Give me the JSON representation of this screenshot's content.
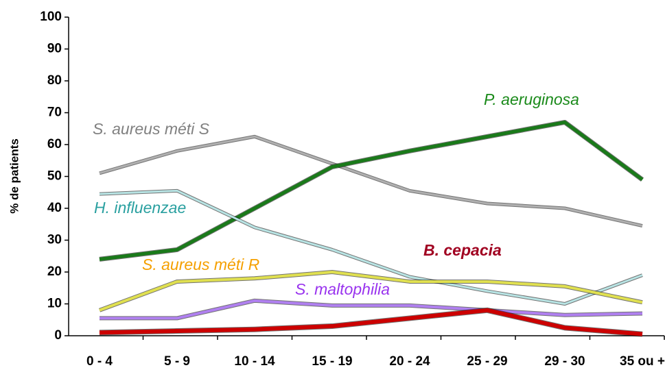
{
  "chart_data": {
    "type": "line",
    "y_label": "% de patients",
    "categories": [
      "0 - 4",
      "5 - 9",
      "10 - 14",
      "15 - 19",
      "20 - 24",
      "25 - 29",
      "29 - 30",
      "35 ou +"
    ],
    "series": [
      {
        "name": "S. aureus méti S",
        "color": "#b0b0b0",
        "label_color": "#808080",
        "values": [
          51,
          58,
          62.5,
          54,
          45.5,
          41.5,
          40,
          34.5
        ]
      },
      {
        "name": "P. aeruginosa",
        "color": "#1a7a1a",
        "label_color": "#1a8a1a",
        "values": [
          24,
          27,
          40,
          53,
          58,
          62.5,
          67,
          49
        ]
      },
      {
        "name": "H. influenzae",
        "color": "#b8e4e4",
        "label_color": "#2aa0a0",
        "values": [
          44.5,
          45.5,
          34,
          27,
          18.5,
          14,
          10,
          19
        ]
      },
      {
        "name": "S. aureus méti R",
        "color": "#e0e050",
        "label_color": "#f5a000",
        "values": [
          8,
          17,
          18,
          20,
          17,
          17,
          15.5,
          10.5
        ]
      },
      {
        "name": "S. maltophilia",
        "color": "#b080f0",
        "label_color": "#9933ee",
        "values": [
          5.5,
          5.5,
          11,
          9.5,
          9.5,
          8,
          6.5,
          7
        ]
      },
      {
        "name": "B. cepacia",
        "color": "#cc0000",
        "label_color": "#a00020",
        "values": [
          1,
          1.5,
          2,
          3,
          5.5,
          8,
          2.5,
          0.5
        ]
      }
    ],
    "ylim": [
      0,
      100
    ],
    "yticks": [
      0,
      10,
      20,
      30,
      40,
      50,
      60,
      70,
      80,
      90,
      100
    ],
    "grid": false
  }
}
